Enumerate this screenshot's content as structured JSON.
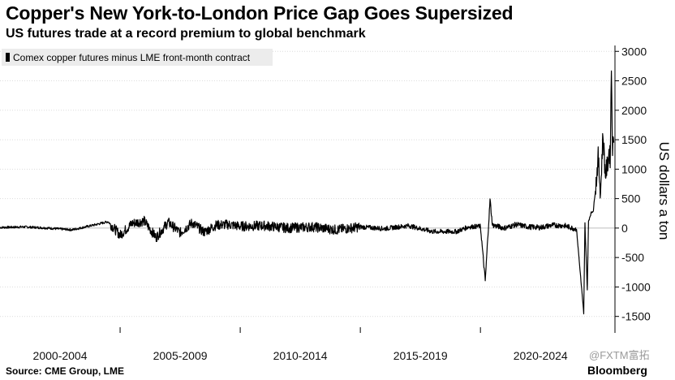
{
  "chart_data": {
    "type": "line",
    "title": "Copper's New York-to-London Price Gap Goes Supersized",
    "subtitle": "US futures trade at a record premium to global benchmark",
    "ylabel": "US dollars a ton",
    "ylim": [
      -1780,
      3100
    ],
    "y_ticks": [
      3000,
      2500,
      2000,
      1500,
      1000,
      500,
      0,
      -500,
      -1000,
      -1500
    ],
    "y_tick_labels": [
      "3000",
      "2500",
      "2000",
      "1500",
      "1000",
      "500",
      "0",
      "-500",
      "-1000",
      "-1500"
    ],
    "x_categories": [
      "2000-2004",
      "2005-2009",
      "2010-2014",
      "2015-2019",
      "2020-2024"
    ],
    "xlim": [
      2000,
      2025.6
    ],
    "legend": "top-left",
    "grid": true,
    "series": [
      {
        "name": "Comex copper futures minus LME front-month contract",
        "color": "#000000",
        "x": [
          2000,
          2001,
          2002,
          2003,
          2004,
          2004.5,
          2005,
          2005.5,
          2006,
          2006.5,
          2007,
          2007.5,
          2008,
          2008.5,
          2009,
          2009.5,
          2010,
          2011,
          2012,
          2013,
          2014,
          2015,
          2016,
          2017,
          2018,
          2019,
          2019.5,
          2020,
          2020.2,
          2020.4,
          2020.5,
          2021,
          2021.5,
          2022,
          2022.5,
          2023,
          2023.5,
          2024,
          2024.3,
          2024.35,
          2024.45,
          2024.5,
          2024.6,
          2024.7,
          2024.8,
          2024.9,
          2025,
          2025.1,
          2025.2,
          2025.3,
          2025.35,
          2025.4,
          2025.45,
          2025.5,
          2025.55
        ],
        "y": [
          10,
          20,
          0,
          -30,
          60,
          110,
          -120,
          80,
          120,
          -160,
          100,
          -80,
          90,
          -70,
          50,
          60,
          30,
          40,
          0,
          20,
          -30,
          20,
          -10,
          40,
          -60,
          -60,
          20,
          30,
          -900,
          480,
          50,
          0,
          60,
          20,
          10,
          50,
          40,
          -20,
          -1450,
          80,
          -1050,
          120,
          250,
          300,
          700,
          1200,
          600,
          1600,
          900,
          1100,
          1300,
          1200,
          2700,
          1400,
          1450
        ]
      }
    ]
  },
  "legend": {
    "label": "Comex copper futures minus LME front-month contract"
  },
  "footer": {
    "source": "Source: CME Group, LME",
    "brand": "Bloomberg",
    "watermark": "@FXTM富拓"
  }
}
